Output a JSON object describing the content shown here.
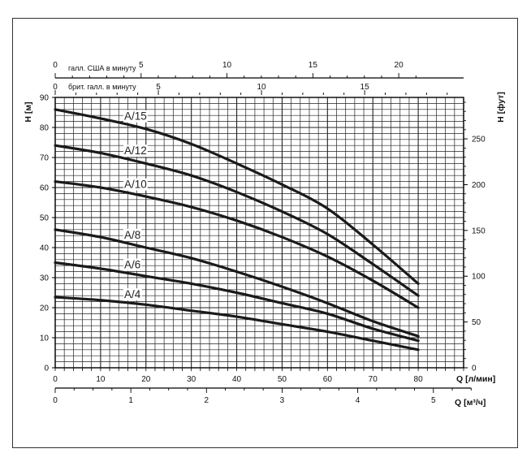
{
  "chart_data": {
    "type": "line",
    "x_axis": {
      "label": "Q [л/мин]",
      "ticks": [
        0,
        10,
        20,
        30,
        40,
        50,
        60,
        70,
        80
      ],
      "range": [
        0,
        90
      ]
    },
    "x_axis_m3h": {
      "label": "Q [м³/ч]",
      "ticks": [
        0,
        1,
        2,
        3,
        4,
        5
      ]
    },
    "top_axis_us": {
      "label": "галл. США в минуту",
      "ticks": [
        0,
        5,
        10,
        15,
        20
      ]
    },
    "top_axis_uk": {
      "label": "брит. галл. в минуту",
      "ticks": [
        0,
        5,
        10,
        15
      ]
    },
    "y_left": {
      "label": "H [м]",
      "ticks": [
        0,
        10,
        20,
        30,
        40,
        50,
        60,
        70,
        80,
        90
      ],
      "range": [
        0,
        90
      ]
    },
    "y_right": {
      "label": "H [фут]",
      "ticks": [
        0,
        50,
        100,
        150,
        200,
        250
      ]
    },
    "grid": true,
    "series": [
      {
        "name": "A/15",
        "x": [
          0,
          10,
          20,
          30,
          40,
          50,
          60,
          70,
          80
        ],
        "y": [
          86,
          83,
          79.5,
          74.5,
          68,
          61,
          53,
          41,
          28
        ]
      },
      {
        "name": "A/12",
        "x": [
          0,
          10,
          20,
          30,
          40,
          50,
          60,
          70,
          80
        ],
        "y": [
          74,
          71.5,
          68,
          64,
          58.5,
          52,
          44.5,
          34.5,
          24
        ]
      },
      {
        "name": "A/10",
        "x": [
          0,
          10,
          20,
          30,
          40,
          50,
          60,
          70,
          80
        ],
        "y": [
          62,
          60,
          57,
          53.5,
          49,
          43.5,
          37,
          29,
          20
        ]
      },
      {
        "name": "A/8",
        "x": [
          0,
          10,
          20,
          30,
          40,
          50,
          60,
          70,
          80
        ],
        "y": [
          46,
          43.5,
          40,
          36.5,
          32,
          27,
          21.5,
          15.5,
          10.5
        ]
      },
      {
        "name": "A/6",
        "x": [
          0,
          10,
          20,
          30,
          40,
          50,
          60,
          70,
          80
        ],
        "y": [
          35,
          33,
          30.5,
          28,
          25,
          21.5,
          18,
          13,
          9
        ]
      },
      {
        "name": "A/4",
        "x": [
          0,
          10,
          20,
          30,
          40,
          50,
          60,
          70,
          80
        ],
        "y": [
          23.5,
          22.5,
          21,
          19,
          17,
          14.5,
          12,
          9,
          6
        ]
      }
    ]
  }
}
